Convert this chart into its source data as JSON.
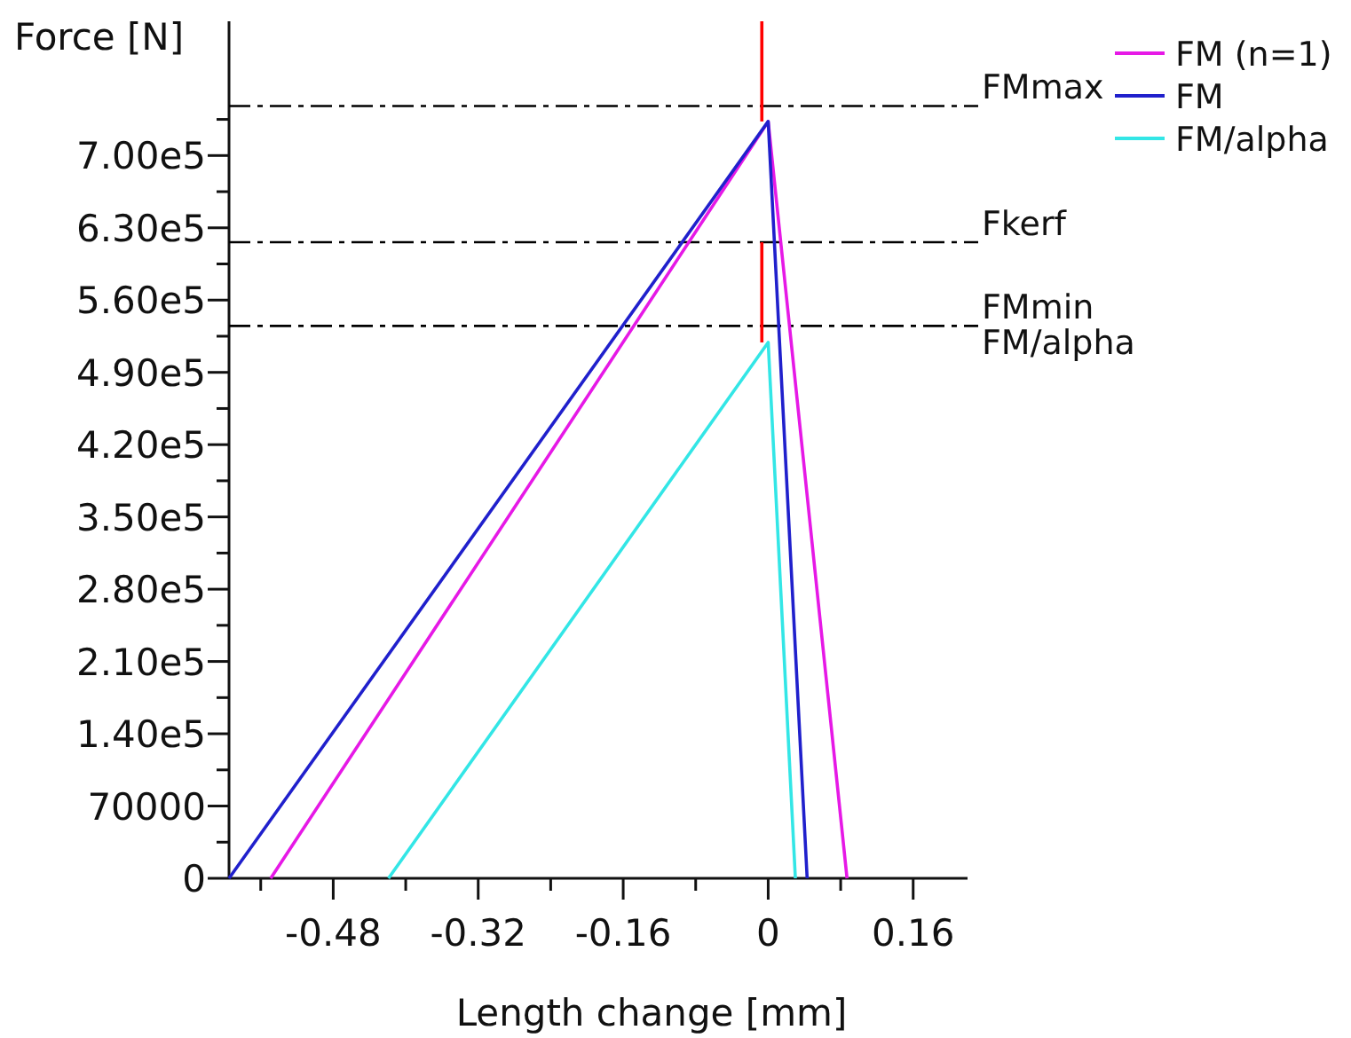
{
  "chart_data": {
    "type": "line",
    "xlabel": "Length change [mm]",
    "ylabel": "Force [N]",
    "xlim": [
      -0.595,
      0.22
    ],
    "xticks": [
      {
        "value": -0.56,
        "label": null
      },
      -0.48,
      {
        "value": -0.4,
        "label": null
      },
      -0.32,
      {
        "value": -0.24,
        "label": null
      },
      -0.16,
      {
        "value": -0.08,
        "label": null
      },
      0,
      {
        "value": 0.08,
        "label": null
      },
      0.16
    ],
    "ylim": [
      0,
      830000
    ],
    "yticks": [
      0,
      {
        "value": 35000,
        "label": null
      },
      70000,
      {
        "value": 105000,
        "label": null
      },
      {
        "value": 140000,
        "label": "1.40e5"
      },
      {
        "value": 175000,
        "label": null
      },
      {
        "value": 210000,
        "label": "2.10e5"
      },
      {
        "value": 245000,
        "label": null
      },
      {
        "value": 280000,
        "label": "2.80e5"
      },
      {
        "value": 315000,
        "label": null
      },
      {
        "value": 350000,
        "label": "3.50e5"
      },
      {
        "value": 385000,
        "label": null
      },
      {
        "value": 420000,
        "label": "4.20e5"
      },
      {
        "value": 455000,
        "label": null
      },
      {
        "value": 490000,
        "label": "4.90e5"
      },
      {
        "value": 525000,
        "label": null
      },
      {
        "value": 560000,
        "label": "5.60e5"
      },
      {
        "value": 595000,
        "label": null
      },
      {
        "value": 630000,
        "label": "6.30e5"
      },
      {
        "value": 665000,
        "label": null
      },
      {
        "value": 700000,
        "label": "7.00e5"
      },
      {
        "value": 735000,
        "label": null
      }
    ],
    "grid": false,
    "legend": "top right",
    "marker": "none",
    "line_style": "solid",
    "series": [
      {
        "name": "FM (n=1)",
        "color": "#e619e6",
        "x": [
          -0.549,
          0,
          0.087
        ],
        "values": [
          0,
          733000,
          0
        ]
      },
      {
        "name": "FM",
        "color": "#2020cc",
        "x": [
          -0.595,
          0,
          0.043
        ],
        "values": [
          0,
          733000,
          0
        ]
      },
      {
        "name": "FM/alpha",
        "color": "#33e6e6",
        "x": [
          -0.419,
          0,
          0.03
        ],
        "values": [
          0,
          519000,
          0
        ]
      },
      {
        "color": "#ff0000",
        "x": [
          -0.007,
          -0.007
        ],
        "values": [
          733000,
          830000
        ]
      },
      {
        "color": "#ff0000",
        "x": [
          -0.007,
          -0.007
        ],
        "values": [
          519000,
          616000
        ]
      }
    ],
    "ref_lines": [
      {
        "axis": "y",
        "value": 748000,
        "label": "FMmax",
        "color": "#000000",
        "line_style": "dashed"
      },
      {
        "axis": "y",
        "value": 616000,
        "label": "Fkerf",
        "color": "#000000",
        "line_style": "dashed"
      },
      {
        "axis": "y",
        "value": 535000,
        "label": "FMmin",
        "color": "#000000",
        "line_style": "dashed"
      }
    ],
    "annotations": [
      {
        "text": "FM/alpha",
        "x": 0.22,
        "y": 535000
      }
    ]
  }
}
